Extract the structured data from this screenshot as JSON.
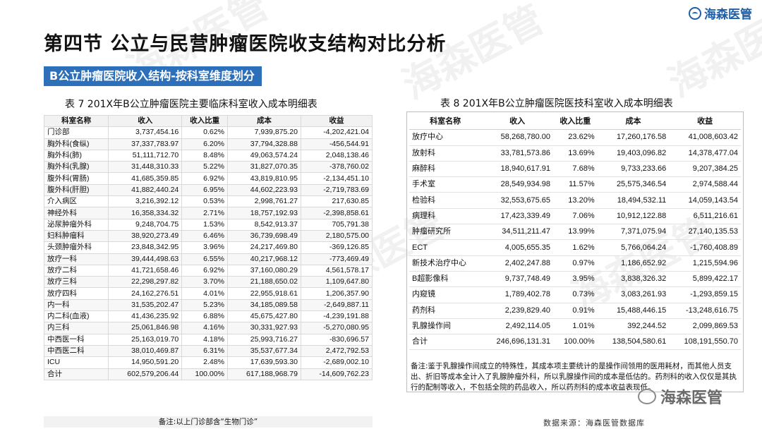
{
  "brand": {
    "name": "海森医管"
  },
  "title": "第四节 公立与民营肿瘤医院收支结构对比分析",
  "section_label": "B公立肿瘤医院收入结构-按科室维度划分",
  "left_table": {
    "caption": "表 7 201X年B公立肿瘤医院主要临床科室收入成本明细表",
    "headers": [
      "科室名称",
      "收入",
      "收入比重",
      "成本",
      "收益"
    ],
    "rows": [
      [
        "门诊部",
        "3,737,454.16",
        "0.62%",
        "7,939,875.20",
        "-4,202,421.04"
      ],
      [
        "胸外科(食纵)",
        "37,337,783.97",
        "6.20%",
        "37,794,328.88",
        "-456,544.91"
      ],
      [
        "胸外科(肺)",
        "51,111,712.70",
        "8.48%",
        "49,063,574.24",
        "2,048,138.46"
      ],
      [
        "胸外科(乳腺)",
        "31,448,310.33",
        "5.22%",
        "31,827,070.35",
        "-378,760.02"
      ],
      [
        "腹外科(胃肠)",
        "41,685,359.85",
        "6.92%",
        "43,819,810.95",
        "-2,134,451.10"
      ],
      [
        "腹外科(肝胆)",
        "41,882,440.24",
        "6.95%",
        "44,602,223.93",
        "-2,719,783.69"
      ],
      [
        "介入病区",
        "3,216,392.12",
        "0.53%",
        "2,998,761.27",
        "217,630.85"
      ],
      [
        "神经外科",
        "16,358,334.32",
        "2.71%",
        "18,757,192.93",
        "-2,398,858.61"
      ],
      [
        "泌尿肿瘤外科",
        "9,248,704.75",
        "1.53%",
        "8,542,913.37",
        "705,791.38"
      ],
      [
        "妇科肿瘤科",
        "38,920,273.49",
        "6.46%",
        "36,739,698.49",
        "2,180,575.00"
      ],
      [
        "头颈肿瘤外科",
        "23,848,342.95",
        "3.96%",
        "24,217,469.80",
        "-369,126.85"
      ],
      [
        "放疗一科",
        "39,444,498.63",
        "6.55%",
        "40,217,968.12",
        "-773,469.49"
      ],
      [
        "放疗二科",
        "41,721,658.46",
        "6.92%",
        "37,160,080.29",
        "4,561,578.17"
      ],
      [
        "放疗三科",
        "22,298,297.82",
        "3.70%",
        "21,188,650.02",
        "1,109,647.80"
      ],
      [
        "放疗四科",
        "24,162,276.51",
        "4.01%",
        "22,955,918.61",
        "1,206,357.90"
      ],
      [
        "内一科",
        "31,535,202.47",
        "5.23%",
        "34,185,089.58",
        "-2,649,887.11"
      ],
      [
        "内二科(血液)",
        "41,436,235.92",
        "6.88%",
        "45,675,427.80",
        "-4,239,191.88"
      ],
      [
        "内三科",
        "25,061,846.98",
        "4.16%",
        "30,331,927.93",
        "-5,270,080.95"
      ],
      [
        "中西医一科",
        "25,163,019.70",
        "4.18%",
        "25,993,716.27",
        "-830,696.57"
      ],
      [
        "中西医二科",
        "38,010,469.87",
        "6.31%",
        "35,537,677.34",
        "2,472,792.53"
      ],
      [
        "ICU",
        "14,950,591.20",
        "2.48%",
        "17,639,593.30",
        "-2,689,002.10"
      ],
      [
        "合计",
        "602,579,206.44",
        "100.00%",
        "617,188,968.79",
        "-14,609,762.23"
      ]
    ],
    "note": "备注:以上门诊部含“生物门诊”"
  },
  "right_table": {
    "caption": "表 8 201X年B公立肿瘤医院医技科室收入成本明细表",
    "headers": [
      "科室名称",
      "收入",
      "收入比重",
      "成本",
      "收益"
    ],
    "rows": [
      [
        "放疗中心",
        "58,268,780.00",
        "23.62%",
        "17,260,176.58",
        "41,008,603.42"
      ],
      [
        "放射科",
        "33,781,573.86",
        "13.69%",
        "19,403,096.82",
        "14,378,477.04"
      ],
      [
        "麻醉科",
        "18,940,617.91",
        "7.68%",
        "9,733,233.66",
        "9,207,384.25"
      ],
      [
        "手术室",
        "28,549,934.98",
        "11.57%",
        "25,575,346.54",
        "2,974,588.44"
      ],
      [
        "检验科",
        "32,553,675.65",
        "13.20%",
        "18,494,532.11",
        "14,059,143.54"
      ],
      [
        "病理科",
        "17,423,339.49",
        "7.06%",
        "10,912,122.88",
        "6,511,216.61"
      ],
      [
        "肿瘤研究所",
        "34,511,211.47",
        "13.99%",
        "7,371,075.94",
        "27,140,135.53"
      ],
      [
        "ECT",
        "4,005,655.35",
        "1.62%",
        "5,766,064.24",
        "-1,760,408.89"
      ],
      [
        "新技术治疗中心",
        "2,402,247.88",
        "0.97%",
        "1,186,652.92",
        "1,215,594.96"
      ],
      [
        "B超影像科",
        "9,737,748.49",
        "3.95%",
        "3,838,326.32",
        "5,899,422.17"
      ],
      [
        "内窥镜",
        "1,789,402.78",
        "0.73%",
        "3,083,261.93",
        "-1,293,859.15"
      ],
      [
        "药剂科",
        "2,239,829.40",
        "0.91%",
        "15,488,446.15",
        "-13,248,616.75"
      ],
      [
        "乳腺操作间",
        "2,492,114.05",
        "1.01%",
        "392,244.52",
        "2,099,869.53"
      ],
      [
        "合计",
        "246,696,131.31",
        "100.00%",
        "138,504,580.61",
        "108,191,550.70"
      ]
    ],
    "note": "备注:鉴于乳腺操作间成立的特殊性，其成本项主要统计的是操作间领用的医用耗材，而其他人员支出、折旧等成本全计入了乳腺肿瘤外科，所以乳腺操作间的成本是低估的。药剂科的收入仅仅是其执行的配制等收入，不包括全院的药品收入，所以药剂科的成本收益表现低。"
  },
  "footer": {
    "source": "数据来源：海森医管数据库",
    "badge": "海森医管"
  }
}
